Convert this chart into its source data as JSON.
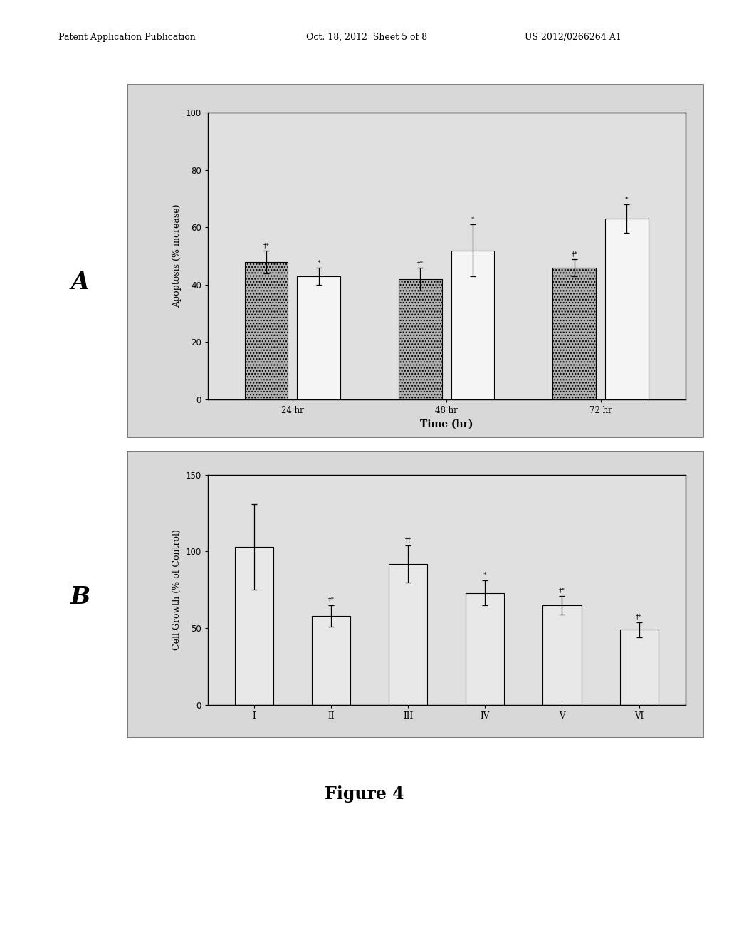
{
  "panel_A": {
    "ylabel": "Apoptosis (% increase)",
    "xlabel": "Time (hr)",
    "groups": [
      "24 hr",
      "48 hr",
      "72 hr"
    ],
    "bar1_values": [
      48,
      42,
      46
    ],
    "bar1_errors": [
      4,
      4,
      3
    ],
    "bar2_values": [
      43,
      52,
      63
    ],
    "bar2_errors": [
      3,
      9,
      5
    ],
    "bar1_color": "#b0b0b0",
    "bar2_color": "#f5f5f5",
    "bar1_hatch": "....",
    "bar2_hatch": "",
    "ylim": [
      0,
      100
    ],
    "yticks": [
      0,
      20,
      40,
      60,
      80,
      100
    ],
    "annotations_bar1": [
      "†*",
      "†*",
      "†*"
    ],
    "annotations_bar2": [
      "*",
      "*",
      "*"
    ]
  },
  "panel_B": {
    "ylabel": "Cell Growth (% of Control)",
    "xlabel": "",
    "groups": [
      "I",
      "II",
      "III",
      "IV",
      "V",
      "VI"
    ],
    "values": [
      103,
      58,
      92,
      73,
      65,
      49
    ],
    "errors": [
      28,
      7,
      12,
      8,
      6,
      5
    ],
    "bar_color": "#e8e8e8",
    "bar_hatch": "",
    "ylim": [
      0,
      150
    ],
    "yticks": [
      0,
      50,
      100,
      150
    ],
    "annotations": [
      "",
      "†*",
      "††",
      "*",
      "†*",
      "†*"
    ]
  },
  "header_left": "Patent Application Publication",
  "header_mid": "Oct. 18, 2012  Sheet 5 of 8",
  "header_right": "US 2012/0266264 A1",
  "figure_label": "Figure 4",
  "outer_bg": "#c8c8c8",
  "inner_bg": "#d8d8d8",
  "plot_bg": "#e0e0e0"
}
